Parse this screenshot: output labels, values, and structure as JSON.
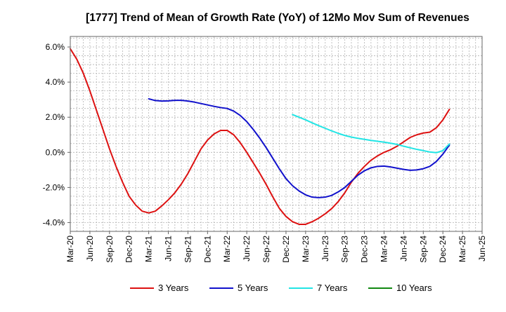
{
  "chart_data": {
    "type": "line",
    "title": "[1777]  Trend of Mean of Growth Rate (YoY) of 12Mo Mov Sum of Revenues",
    "xlabel": "",
    "ylabel": "",
    "ylim": [
      -4.5,
      6.6
    ],
    "yticks": [
      -4.0,
      -2.0,
      0.0,
      2.0,
      4.0,
      6.0
    ],
    "ytick_labels": [
      "-4.0%",
      "-2.0%",
      "0.0%",
      "2.0%",
      "4.0%",
      "6.0%"
    ],
    "x_start": "Mar-20",
    "x_end": "Jun-25",
    "x_tick_labels": [
      "Mar-20",
      "Jun-20",
      "Sep-20",
      "Dec-20",
      "Mar-21",
      "Jun-21",
      "Sep-21",
      "Dec-21",
      "Mar-22",
      "Jun-22",
      "Sep-22",
      "Dec-22",
      "Mar-23",
      "Jun-23",
      "Sep-23",
      "Dec-23",
      "Mar-24",
      "Jun-24",
      "Sep-24",
      "Dec-24",
      "Mar-25",
      "Jun-25"
    ],
    "grid": true,
    "legend_position": "bottom",
    "x_unit": "months since Mar-20",
    "series": [
      {
        "name": "3 Years",
        "color": "#dd1111",
        "points": [
          [
            0,
            5.9
          ],
          [
            1,
            5.3
          ],
          [
            2,
            4.5
          ],
          [
            3,
            3.5
          ],
          [
            4,
            2.4
          ],
          [
            5,
            1.3
          ],
          [
            6,
            0.2
          ],
          [
            7,
            -0.8
          ],
          [
            8,
            -1.7
          ],
          [
            9,
            -2.5
          ],
          [
            10,
            -3.0
          ],
          [
            11,
            -3.35
          ],
          [
            12,
            -3.45
          ],
          [
            13,
            -3.35
          ],
          [
            14,
            -3.05
          ],
          [
            15,
            -2.7
          ],
          [
            16,
            -2.3
          ],
          [
            17,
            -1.8
          ],
          [
            18,
            -1.2
          ],
          [
            19,
            -0.5
          ],
          [
            20,
            0.2
          ],
          [
            21,
            0.7
          ],
          [
            22,
            1.05
          ],
          [
            23,
            1.25
          ],
          [
            24,
            1.25
          ],
          [
            25,
            1.0
          ],
          [
            26,
            0.55
          ],
          [
            27,
            0.0
          ],
          [
            28,
            -0.6
          ],
          [
            29,
            -1.2
          ],
          [
            30,
            -1.85
          ],
          [
            31,
            -2.55
          ],
          [
            32,
            -3.2
          ],
          [
            33,
            -3.65
          ],
          [
            34,
            -3.95
          ],
          [
            35,
            -4.1
          ],
          [
            36,
            -4.1
          ],
          [
            37,
            -3.95
          ],
          [
            38,
            -3.75
          ],
          [
            39,
            -3.5
          ],
          [
            40,
            -3.2
          ],
          [
            41,
            -2.8
          ],
          [
            42,
            -2.3
          ],
          [
            43,
            -1.7
          ],
          [
            44,
            -1.2
          ],
          [
            45,
            -0.8
          ],
          [
            46,
            -0.45
          ],
          [
            47,
            -0.2
          ],
          [
            48,
            0.0
          ],
          [
            49,
            0.15
          ],
          [
            50,
            0.35
          ],
          [
            51,
            0.6
          ],
          [
            52,
            0.85
          ],
          [
            53,
            1.0
          ],
          [
            54,
            1.1
          ],
          [
            55,
            1.15
          ],
          [
            56,
            1.4
          ],
          [
            57,
            1.85
          ],
          [
            58,
            2.45
          ]
        ]
      },
      {
        "name": "5 Years",
        "color": "#1111cc",
        "points": [
          [
            12,
            3.05
          ],
          [
            13,
            2.95
          ],
          [
            14,
            2.92
          ],
          [
            15,
            2.93
          ],
          [
            16,
            2.96
          ],
          [
            17,
            2.96
          ],
          [
            18,
            2.92
          ],
          [
            19,
            2.86
          ],
          [
            20,
            2.78
          ],
          [
            21,
            2.7
          ],
          [
            22,
            2.62
          ],
          [
            23,
            2.55
          ],
          [
            24,
            2.5
          ],
          [
            25,
            2.35
          ],
          [
            26,
            2.1
          ],
          [
            27,
            1.75
          ],
          [
            28,
            1.3
          ],
          [
            29,
            0.8
          ],
          [
            30,
            0.25
          ],
          [
            31,
            -0.35
          ],
          [
            32,
            -0.95
          ],
          [
            33,
            -1.5
          ],
          [
            34,
            -1.9
          ],
          [
            35,
            -2.2
          ],
          [
            36,
            -2.42
          ],
          [
            37,
            -2.55
          ],
          [
            38,
            -2.58
          ],
          [
            39,
            -2.55
          ],
          [
            40,
            -2.45
          ],
          [
            41,
            -2.25
          ],
          [
            42,
            -2.0
          ],
          [
            43,
            -1.65
          ],
          [
            44,
            -1.3
          ],
          [
            45,
            -1.05
          ],
          [
            46,
            -0.88
          ],
          [
            47,
            -0.8
          ],
          [
            48,
            -0.78
          ],
          [
            49,
            -0.83
          ],
          [
            50,
            -0.9
          ],
          [
            51,
            -0.97
          ],
          [
            52,
            -1.02
          ],
          [
            53,
            -1.0
          ],
          [
            54,
            -0.93
          ],
          [
            55,
            -0.8
          ],
          [
            56,
            -0.52
          ],
          [
            57,
            -0.1
          ],
          [
            58,
            0.42
          ]
        ]
      },
      {
        "name": "7 Years",
        "color": "#22e5e5",
        "points": [
          [
            34,
            2.15
          ],
          [
            35,
            2.0
          ],
          [
            36,
            1.85
          ],
          [
            37,
            1.68
          ],
          [
            38,
            1.52
          ],
          [
            39,
            1.37
          ],
          [
            40,
            1.22
          ],
          [
            41,
            1.08
          ],
          [
            42,
            0.96
          ],
          [
            43,
            0.87
          ],
          [
            44,
            0.8
          ],
          [
            45,
            0.74
          ],
          [
            46,
            0.68
          ],
          [
            47,
            0.63
          ],
          [
            48,
            0.58
          ],
          [
            49,
            0.52
          ],
          [
            50,
            0.45
          ],
          [
            51,
            0.35
          ],
          [
            52,
            0.26
          ],
          [
            53,
            0.17
          ],
          [
            54,
            0.1
          ],
          [
            55,
            0.02
          ],
          [
            56,
            -0.02
          ],
          [
            57,
            0.1
          ],
          [
            58,
            0.48
          ]
        ]
      },
      {
        "name": "10 Years",
        "color": "#118811",
        "points": []
      }
    ]
  }
}
